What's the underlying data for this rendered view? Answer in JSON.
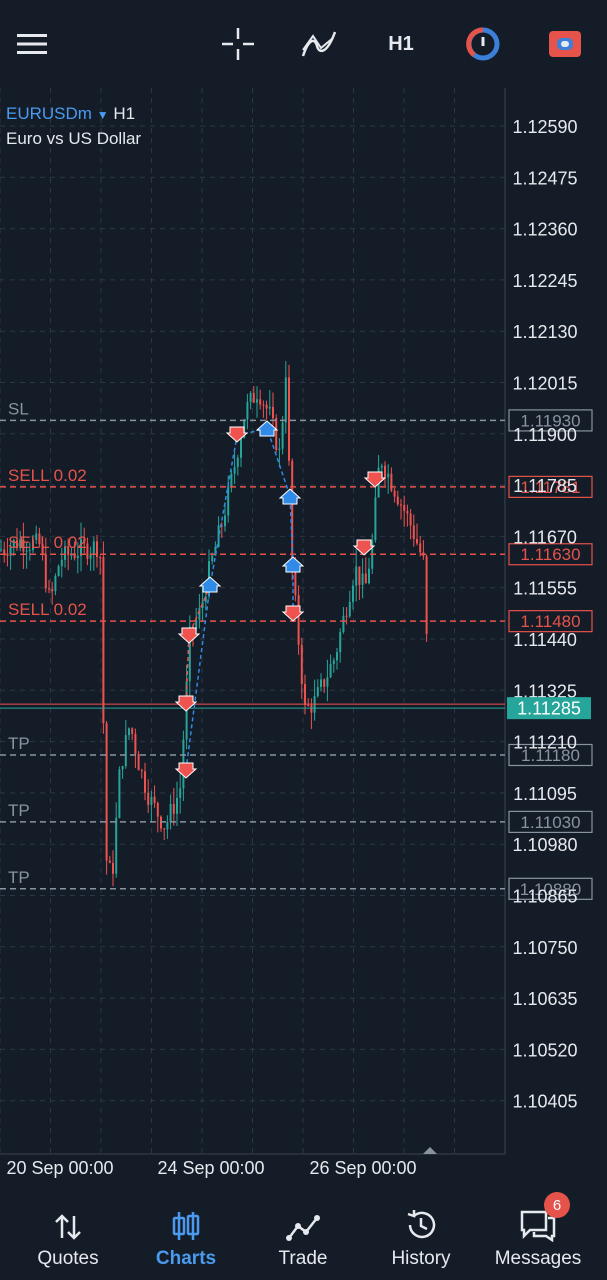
{
  "toolbar": {
    "menu_icon": "hamburger-icon",
    "crosshair_icon": "crosshair-icon",
    "indicators_icon": "indicators-icon",
    "timeframe": "H1",
    "trade_icon": "one-click-trade-icon",
    "account_icon": "account-icon"
  },
  "chart": {
    "symbol": "EURUSDm",
    "timeframe": "H1",
    "description": "Euro vs US Dollar",
    "price_axis": [
      "1.12590",
      "1.12475",
      "1.12360",
      "1.12245",
      "1.12130",
      "1.12015",
      "1.11900",
      "1.11785",
      "1.11670",
      "1.11555",
      "1.11440",
      "1.11325",
      "1.11210",
      "1.11095",
      "1.10980",
      "1.10865",
      "1.10750",
      "1.10635",
      "1.10520",
      "1.10405"
    ],
    "time_axis": [
      "20 Sep 00:00",
      "24 Sep 00:00",
      "26 Sep 00:00"
    ],
    "current_price": "1.11285",
    "levels": [
      {
        "label": "SL",
        "price": "1.11930",
        "kind": "sl"
      },
      {
        "label": "SELL 0.02",
        "price": "1.11781",
        "kind": "order"
      },
      {
        "label": "SELL 0.02",
        "price": "1.11630",
        "kind": "order"
      },
      {
        "label": "SELL 0.02",
        "price": "1.11480",
        "kind": "order"
      },
      {
        "label": "TP",
        "price": "1.11180",
        "kind": "tp"
      },
      {
        "label": "TP",
        "price": "1.11030",
        "kind": "tp"
      },
      {
        "label": "TP",
        "price": "1.10880",
        "kind": "tp"
      }
    ],
    "colors": {
      "up": "#26a69a",
      "down": "#ef5350",
      "order": "#e5534b",
      "sl_tp": "#8a93a0",
      "buy_arrow": "#2f8ae8",
      "current": "#26a69a"
    }
  },
  "nav": {
    "items": [
      {
        "label": "Quotes",
        "icon": "quotes-icon",
        "active": false
      },
      {
        "label": "Charts",
        "icon": "charts-icon",
        "active": true
      },
      {
        "label": "Trade",
        "icon": "trade-icon",
        "active": false
      },
      {
        "label": "History",
        "icon": "history-icon",
        "active": false
      },
      {
        "label": "Messages",
        "icon": "messages-icon",
        "active": false,
        "badge": "6"
      }
    ]
  }
}
